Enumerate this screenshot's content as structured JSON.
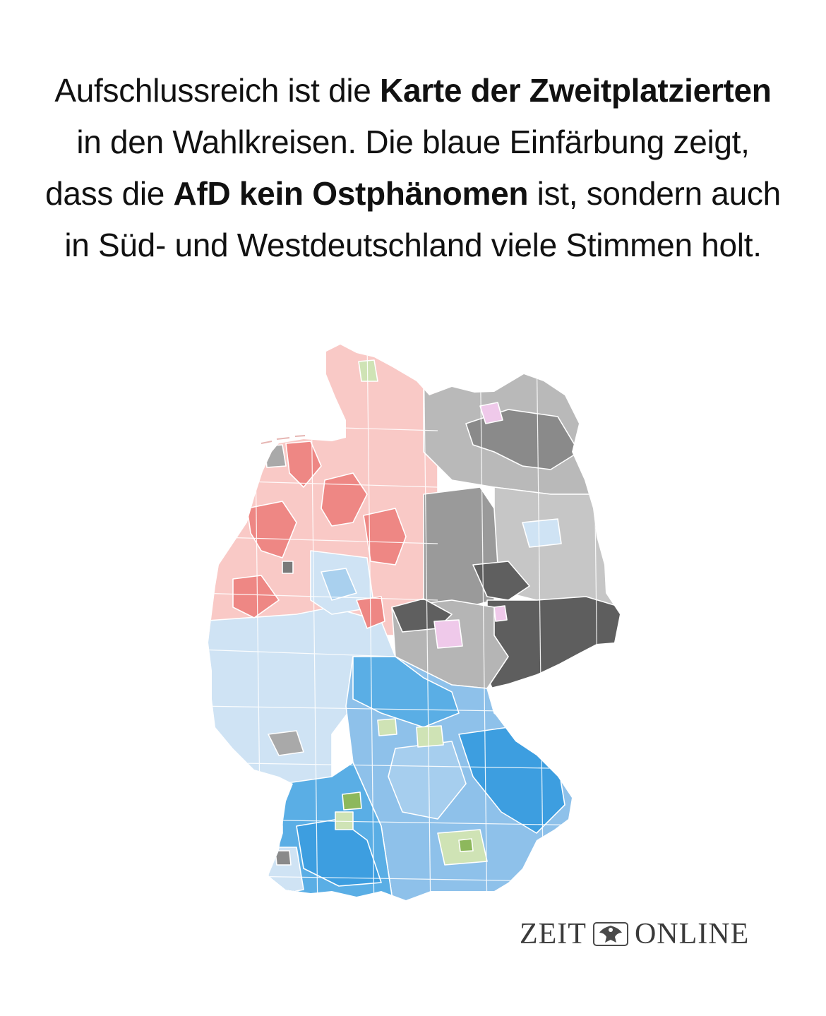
{
  "headline": {
    "part1": "Aufschlussreich ist die ",
    "bold1": "Karte der Zweit­platzierten",
    "part2": " in den Wahlkreisen. Die blaue Einfärbung zeigt, dass die ",
    "bold2": "AfD kein Ost­phänomen",
    "part3": " ist, sondern auch in Süd- und Westdeutschland viele Stimmen holt."
  },
  "map": {
    "subject": "Zweitplatzierte in den Wahlkreisen",
    "colors": {
      "spd_light": "#f9c9c6",
      "spd_dark": "#ee8784",
      "afd_light": "#cfe3f4",
      "afd_mid": "#8ec1ea",
      "afd_dark": "#3d9ee0",
      "union_light": "#c4c4c4",
      "union_mid": "#9a9a9a",
      "union_dark": "#6b6b6b",
      "linke": "#efc9ea",
      "gruene": "#cfe3b5",
      "gruene_dark": "#8db85c"
    }
  },
  "logo": {
    "left": "ZEIT",
    "right": "ONLINE",
    "emblem": "eagle-crest-icon"
  }
}
